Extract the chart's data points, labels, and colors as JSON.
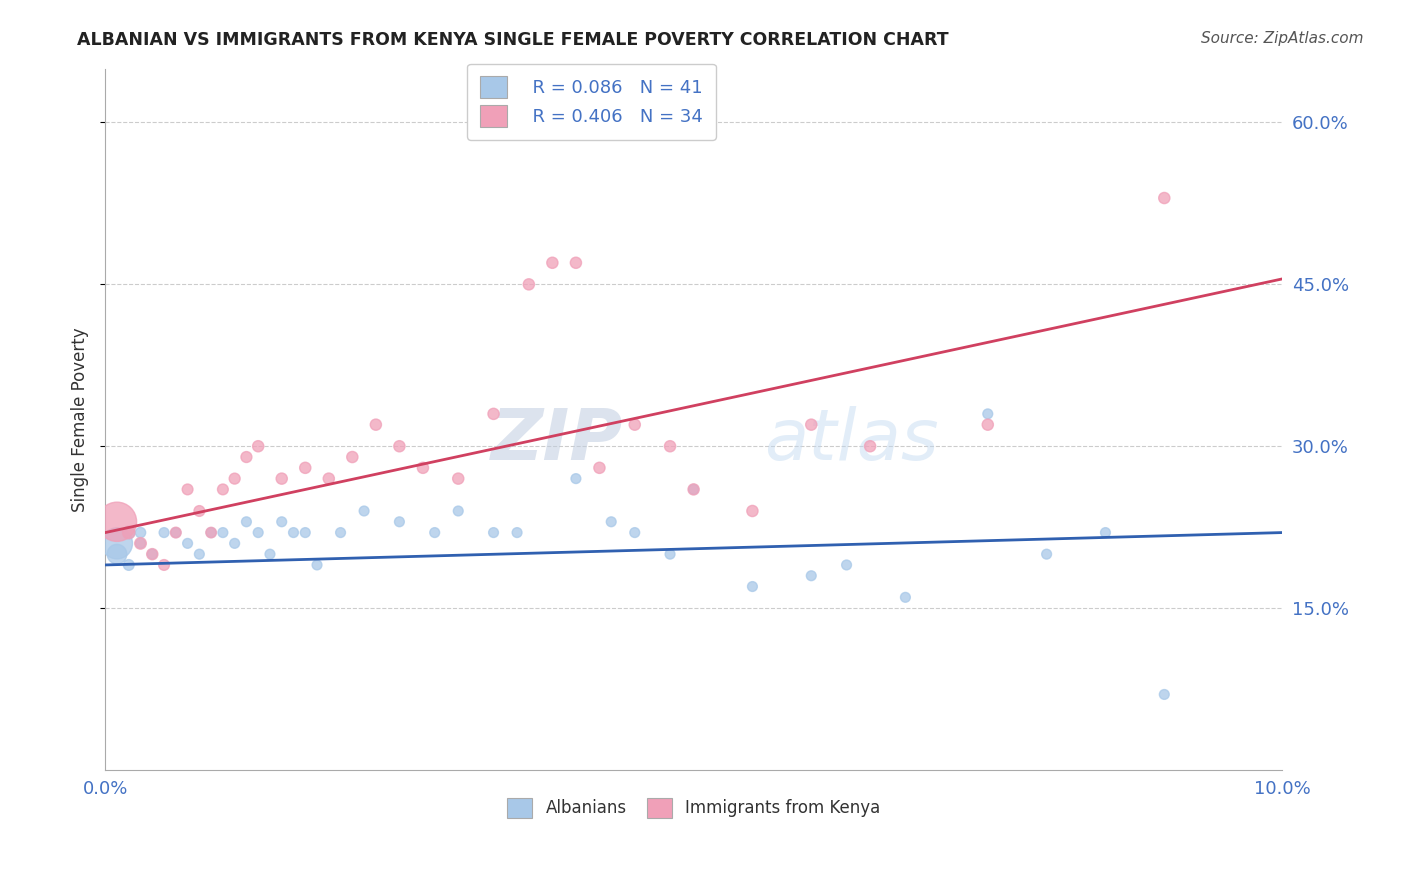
{
  "title": "ALBANIAN VS IMMIGRANTS FROM KENYA SINGLE FEMALE POVERTY CORRELATION CHART",
  "source": "Source: ZipAtlas.com",
  "ylabel": "Single Female Poverty",
  "xlim": [
    0.0,
    0.1
  ],
  "ylim": [
    0.0,
    0.65
  ],
  "xtick_vals": [
    0.0,
    0.025,
    0.05,
    0.075,
    0.1
  ],
  "xtick_labels": [
    "0.0%",
    "",
    "",
    "",
    "10.0%"
  ],
  "ytick_vals": [
    0.15,
    0.3,
    0.45,
    0.6
  ],
  "ytick_labels": [
    "15.0%",
    "30.0%",
    "45.0%",
    "60.0%"
  ],
  "legend_r1": "R = 0.086",
  "legend_n1": "N = 41",
  "legend_r2": "R = 0.406",
  "legend_n2": "N = 34",
  "color_blue": "#A8C8E8",
  "color_pink": "#F0A0B8",
  "color_blue_line": "#3060B0",
  "color_pink_line": "#D04060",
  "color_text": "#4472C4",
  "watermark_zip": "ZIP",
  "watermark_atlas": "atlas",
  "background_color": "#FFFFFF",
  "grid_color": "#CCCCCC",
  "alb_line_x0": 0.0,
  "alb_line_y0": 0.19,
  "alb_line_x1": 0.1,
  "alb_line_y1": 0.22,
  "ken_line_x0": 0.0,
  "ken_line_y0": 0.22,
  "ken_line_x1": 0.1,
  "ken_line_y1": 0.455,
  "albanian_x": [
    0.001,
    0.001,
    0.002,
    0.002,
    0.003,
    0.003,
    0.004,
    0.005,
    0.006,
    0.007,
    0.008,
    0.009,
    0.01,
    0.011,
    0.012,
    0.013,
    0.014,
    0.015,
    0.016,
    0.017,
    0.018,
    0.02,
    0.022,
    0.025,
    0.028,
    0.03,
    0.033,
    0.035,
    0.04,
    0.043,
    0.045,
    0.048,
    0.05,
    0.055,
    0.06,
    0.063,
    0.068,
    0.075,
    0.08,
    0.085,
    0.09
  ],
  "albanian_y": [
    0.21,
    0.2,
    0.22,
    0.19,
    0.22,
    0.21,
    0.2,
    0.22,
    0.22,
    0.21,
    0.2,
    0.22,
    0.22,
    0.21,
    0.23,
    0.22,
    0.2,
    0.23,
    0.22,
    0.22,
    0.19,
    0.22,
    0.24,
    0.23,
    0.22,
    0.24,
    0.22,
    0.22,
    0.27,
    0.23,
    0.22,
    0.2,
    0.26,
    0.17,
    0.18,
    0.19,
    0.16,
    0.33,
    0.2,
    0.22,
    0.07
  ],
  "albanian_sizes": [
    500,
    200,
    80,
    60,
    55,
    50,
    50,
    50,
    50,
    50,
    50,
    50,
    50,
    50,
    50,
    50,
    50,
    50,
    50,
    50,
    50,
    50,
    50,
    50,
    50,
    50,
    50,
    50,
    50,
    50,
    50,
    50,
    50,
    50,
    50,
    50,
    50,
    50,
    50,
    50,
    50
  ],
  "kenya_x": [
    0.001,
    0.002,
    0.003,
    0.004,
    0.005,
    0.006,
    0.007,
    0.008,
    0.009,
    0.01,
    0.011,
    0.012,
    0.013,
    0.015,
    0.017,
    0.019,
    0.021,
    0.023,
    0.025,
    0.027,
    0.03,
    0.033,
    0.036,
    0.038,
    0.04,
    0.042,
    0.045,
    0.048,
    0.05,
    0.055,
    0.06,
    0.065,
    0.075,
    0.09
  ],
  "kenya_y": [
    0.23,
    0.22,
    0.21,
    0.2,
    0.19,
    0.22,
    0.26,
    0.24,
    0.22,
    0.26,
    0.27,
    0.29,
    0.3,
    0.27,
    0.28,
    0.27,
    0.29,
    0.32,
    0.3,
    0.28,
    0.27,
    0.33,
    0.45,
    0.47,
    0.47,
    0.28,
    0.32,
    0.3,
    0.26,
    0.24,
    0.32,
    0.3,
    0.32,
    0.53
  ],
  "kenya_sizes": [
    800,
    80,
    70,
    65,
    60,
    60,
    60,
    60,
    58,
    60,
    62,
    62,
    65,
    65,
    65,
    65,
    65,
    65,
    65,
    65,
    65,
    65,
    65,
    65,
    65,
    65,
    65,
    65,
    65,
    65,
    65,
    65,
    65,
    65
  ]
}
